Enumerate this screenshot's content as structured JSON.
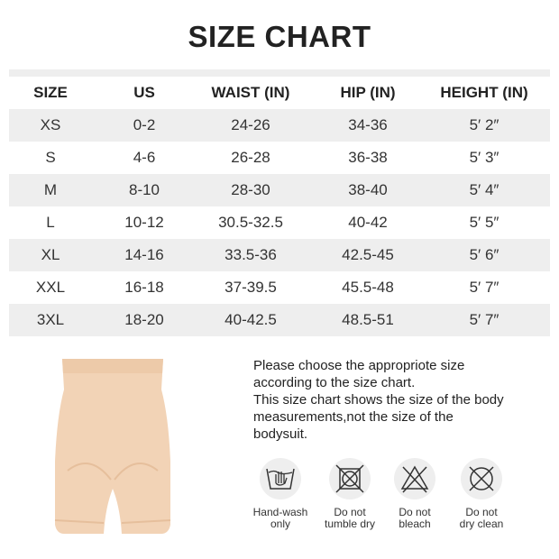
{
  "title": "SIZE CHART",
  "table": {
    "headers": [
      "SIZE",
      "US",
      "WAIST (IN)",
      "HIP (IN)",
      "HEIGHT (IN)"
    ],
    "rows": [
      [
        "XS",
        "0-2",
        "24-26",
        "34-36",
        "5′ 2″"
      ],
      [
        "S",
        "4-6",
        "26-28",
        "36-38",
        "5′ 3″"
      ],
      [
        "M",
        "8-10",
        "28-30",
        "38-40",
        "5′ 4″"
      ],
      [
        "L",
        "10-12",
        "30.5-32.5",
        "40-42",
        "5′ 5″"
      ],
      [
        "XL",
        "14-16",
        "33.5-36",
        "42.5-45",
        "5′ 6″"
      ],
      [
        "XXL",
        "16-18",
        "37-39.5",
        "45.5-48",
        "5′ 7″"
      ],
      [
        "3XL",
        "18-20",
        "40-42.5",
        "48.5-51",
        "5′ 7″"
      ]
    ]
  },
  "note": [
    "Please choose the appropriote size",
    "according to the size chart.",
    "This size chart shows the size of the body",
    "measurements,not the size of the",
    "bodysuit."
  ],
  "care": [
    {
      "icon": "hand-wash-icon",
      "line1": "Hand-wash",
      "line2": "only"
    },
    {
      "icon": "no-tumble-dry-icon",
      "line1": "Do not",
      "line2": "tumble dry"
    },
    {
      "icon": "no-bleach-icon",
      "line1": "Do not",
      "line2": "bleach"
    },
    {
      "icon": "no-dry-clean-icon",
      "line1": "Do not",
      "line2": "dry clean"
    }
  ],
  "colors": {
    "stripe": "#eeeeee",
    "product": "#f2d3b6"
  }
}
